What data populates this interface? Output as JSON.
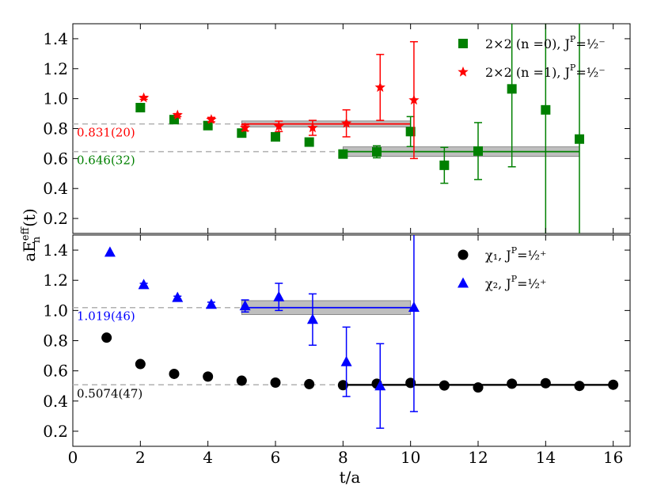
{
  "chart_data": {
    "type": "scatter",
    "xlabel": "t/a",
    "ylabel": "aE_n^eff(t)",
    "xlim": [
      0,
      16.5
    ],
    "x_ticks": [
      "0",
      "2",
      "4",
      "6",
      "8",
      "10",
      "12",
      "14",
      "16"
    ],
    "panels": [
      {
        "name": "top",
        "ylim": [
          0.1,
          1.5
        ],
        "y_ticks": [
          "0.2",
          "0.4",
          "0.6",
          "0.8",
          "1.0",
          "1.2",
          "1.4"
        ],
        "series": [
          {
            "name": "2x2 (n=0), J^P=1/2^-",
            "legend_text": "2×2  (n =0), J",
            "legend_sup": "P",
            "legend_tail": "=½⁻",
            "color": "#008000",
            "marker": "square",
            "points": [
              {
                "x": 2,
                "y": 0.94,
                "err": 0.01
              },
              {
                "x": 3,
                "y": 0.86,
                "err": 0.01
              },
              {
                "x": 4,
                "y": 0.82,
                "err": 0.015
              },
              {
                "x": 5,
                "y": 0.77,
                "err": 0.015
              },
              {
                "x": 6,
                "y": 0.745,
                "err": 0.02
              },
              {
                "x": 7,
                "y": 0.71,
                "err": 0.02
              },
              {
                "x": 8,
                "y": 0.63,
                "err": 0.02
              },
              {
                "x": 9,
                "y": 0.645,
                "err": 0.04
              },
              {
                "x": 10,
                "y": 0.78,
                "err": 0.1
              },
              {
                "x": 11,
                "y": 0.555,
                "err": 0.12
              },
              {
                "x": 12,
                "y": 0.65,
                "err": 0.19
              },
              {
                "x": 13,
                "y": 1.065,
                "err": 0.52
              },
              {
                "x": 14,
                "y": 0.925,
                "err": 1.0
              },
              {
                "x": 15,
                "y": 0.73,
                "err": 1.0
              }
            ],
            "fit": {
              "value": 0.646,
              "err": 0.032,
              "x_start": 8,
              "x_end": 15,
              "label": "0.646(32)"
            }
          },
          {
            "name": "2x2 (n=1), J^P=1/2^-",
            "legend_text": "2×2  (n =1), J",
            "legend_sup": "P",
            "legend_tail": "=½⁻",
            "color": "#ff0000",
            "marker": "star",
            "points": [
              {
                "x": 2.1,
                "y": 1.005,
                "err": 0.01
              },
              {
                "x": 3.1,
                "y": 0.89,
                "err": 0.01
              },
              {
                "x": 4.1,
                "y": 0.86,
                "err": 0.015
              },
              {
                "x": 5.1,
                "y": 0.805,
                "err": 0.02
              },
              {
                "x": 6.1,
                "y": 0.815,
                "err": 0.035
              },
              {
                "x": 7.1,
                "y": 0.805,
                "err": 0.05
              },
              {
                "x": 8.1,
                "y": 0.835,
                "err": 0.09
              },
              {
                "x": 9.1,
                "y": 1.075,
                "err": 0.22
              },
              {
                "x": 10.1,
                "y": 0.99,
                "err": 0.39
              }
            ],
            "fit": {
              "value": 0.831,
              "err": 0.02,
              "x_start": 5,
              "x_end": 10,
              "label": "0.831(20)"
            }
          }
        ]
      },
      {
        "name": "bottom",
        "ylim": [
          0.1,
          1.5
        ],
        "y_ticks": [
          "0.2",
          "0.4",
          "0.6",
          "0.8",
          "1.0",
          "1.2",
          "1.4"
        ],
        "series": [
          {
            "name": "chi_1, J^P=1/2^+",
            "legend_text": "χ₁, J",
            "legend_sup": "P",
            "legend_tail": "=½⁺",
            "color": "#000000",
            "marker": "circle",
            "points": [
              {
                "x": 1,
                "y": 0.82,
                "err": 0.005
              },
              {
                "x": 2,
                "y": 0.645,
                "err": 0.005
              },
              {
                "x": 3,
                "y": 0.58,
                "err": 0.005
              },
              {
                "x": 4,
                "y": 0.562,
                "err": 0.005
              },
              {
                "x": 5,
                "y": 0.535,
                "err": 0.005
              },
              {
                "x": 6,
                "y": 0.522,
                "err": 0.005
              },
              {
                "x": 7,
                "y": 0.512,
                "err": 0.005
              },
              {
                "x": 8,
                "y": 0.505,
                "err": 0.005
              },
              {
                "x": 9,
                "y": 0.515,
                "err": 0.005
              },
              {
                "x": 10,
                "y": 0.52,
                "err": 0.01
              },
              {
                "x": 11,
                "y": 0.503,
                "err": 0.01
              },
              {
                "x": 12,
                "y": 0.49,
                "err": 0.01
              },
              {
                "x": 13,
                "y": 0.515,
                "err": 0.01
              },
              {
                "x": 14,
                "y": 0.518,
                "err": 0.01
              },
              {
                "x": 15,
                "y": 0.5,
                "err": 0.01
              },
              {
                "x": 16,
                "y": 0.508,
                "err": 0.01
              }
            ],
            "fit": {
              "value": 0.5074,
              "err": 0.0047,
              "x_start": 8,
              "x_end": 16,
              "label": "0.5074(47)"
            }
          },
          {
            "name": "chi_2, J^P=1/2^+",
            "legend_text": "χ₂, J",
            "legend_sup": "P",
            "legend_tail": "=½⁺",
            "color": "#0000ff",
            "marker": "triangle",
            "points": [
              {
                "x": 1.1,
                "y": 1.385,
                "err": 0.005
              },
              {
                "x": 2.1,
                "y": 1.17,
                "err": 0.01
              },
              {
                "x": 3.1,
                "y": 1.085,
                "err": 0.01
              },
              {
                "x": 4.1,
                "y": 1.04,
                "err": 0.015
              },
              {
                "x": 5.1,
                "y": 1.03,
                "err": 0.04
              },
              {
                "x": 6.1,
                "y": 1.09,
                "err": 0.09
              },
              {
                "x": 7.1,
                "y": 0.94,
                "err": 0.17
              },
              {
                "x": 8.1,
                "y": 0.66,
                "err": 0.23
              },
              {
                "x": 9.1,
                "y": 0.5,
                "err": 0.28
              },
              {
                "x": 10.1,
                "y": 1.02,
                "err": 0.69
              }
            ],
            "fit": {
              "value": 1.019,
              "err": 0.046,
              "x_start": 5,
              "x_end": 10,
              "label": "1.019(46)"
            }
          }
        ]
      }
    ]
  }
}
